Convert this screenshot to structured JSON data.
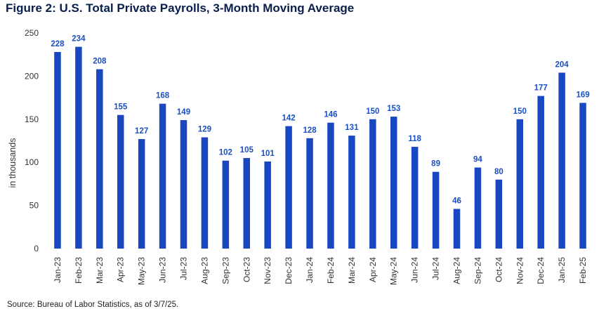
{
  "title": "Figure 2: U.S. Total Private Payrolls, 3-Month Moving Average",
  "source": "Source: Bureau of Labor Statistics, as of 3/7/25.",
  "colors": {
    "bar": "#1947c2",
    "label": "#1a4fc4",
    "title": "#0b1f4d"
  },
  "chart_data": {
    "type": "bar",
    "title": "Figure 2: U.S. Total Private Payrolls, 3-Month Moving Average",
    "xlabel": "",
    "ylabel": "in thousands",
    "ylim": [
      0,
      250
    ],
    "yticks": [
      0,
      50,
      100,
      150,
      200,
      250
    ],
    "grid": false,
    "categories": [
      "Jan-23",
      "Feb-23",
      "Mar-23",
      "Apr-23",
      "May-23",
      "Jun-23",
      "Jul-23",
      "Aug-23",
      "Sep-23",
      "Oct-23",
      "Nov-23",
      "Dec-23",
      "Jan-24",
      "Feb-24",
      "Mar-24",
      "Apr-24",
      "May-24",
      "Jun-24",
      "Jul-24",
      "Aug-24",
      "Sep-24",
      "Oct-24",
      "Nov-24",
      "Dec-24",
      "Jan-25",
      "Feb-25"
    ],
    "values": [
      228,
      234,
      208,
      155,
      127,
      168,
      149,
      129,
      102,
      105,
      101,
      142,
      128,
      146,
      131,
      150,
      153,
      118,
      89,
      46,
      94,
      80,
      150,
      177,
      204,
      169
    ]
  }
}
